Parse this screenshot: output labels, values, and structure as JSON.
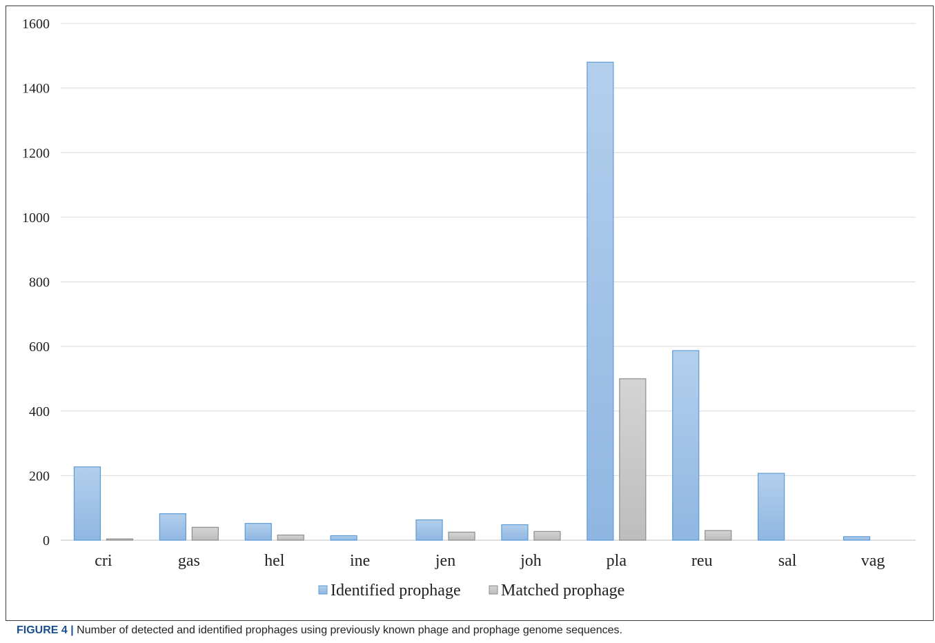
{
  "caption": {
    "label": "FIGURE 4 |",
    "text": "Number of detected and identified prophages using previously known phage and prophage genome sequences."
  },
  "chart_data": {
    "type": "bar",
    "title": "",
    "xlabel": "",
    "ylabel": "",
    "ylim": [
      0,
      1600
    ],
    "yticks": [
      0,
      200,
      400,
      600,
      800,
      1000,
      1200,
      1400,
      1600
    ],
    "grid": true,
    "legend_position": "bottom",
    "categories": [
      "cri",
      "gas",
      "hel",
      "ine",
      "jen",
      "joh",
      "pla",
      "reu",
      "sal",
      "vag"
    ],
    "series": [
      {
        "name": "Identified prophage",
        "color": "#9dc3e6",
        "values": [
          227,
          82,
          52,
          14,
          63,
          48,
          1480,
          587,
          207,
          11
        ]
      },
      {
        "name": "Matched prophage",
        "color": "#c9c9c9",
        "values": [
          4,
          40,
          16,
          0,
          25,
          27,
          500,
          30,
          0,
          0
        ]
      }
    ]
  }
}
